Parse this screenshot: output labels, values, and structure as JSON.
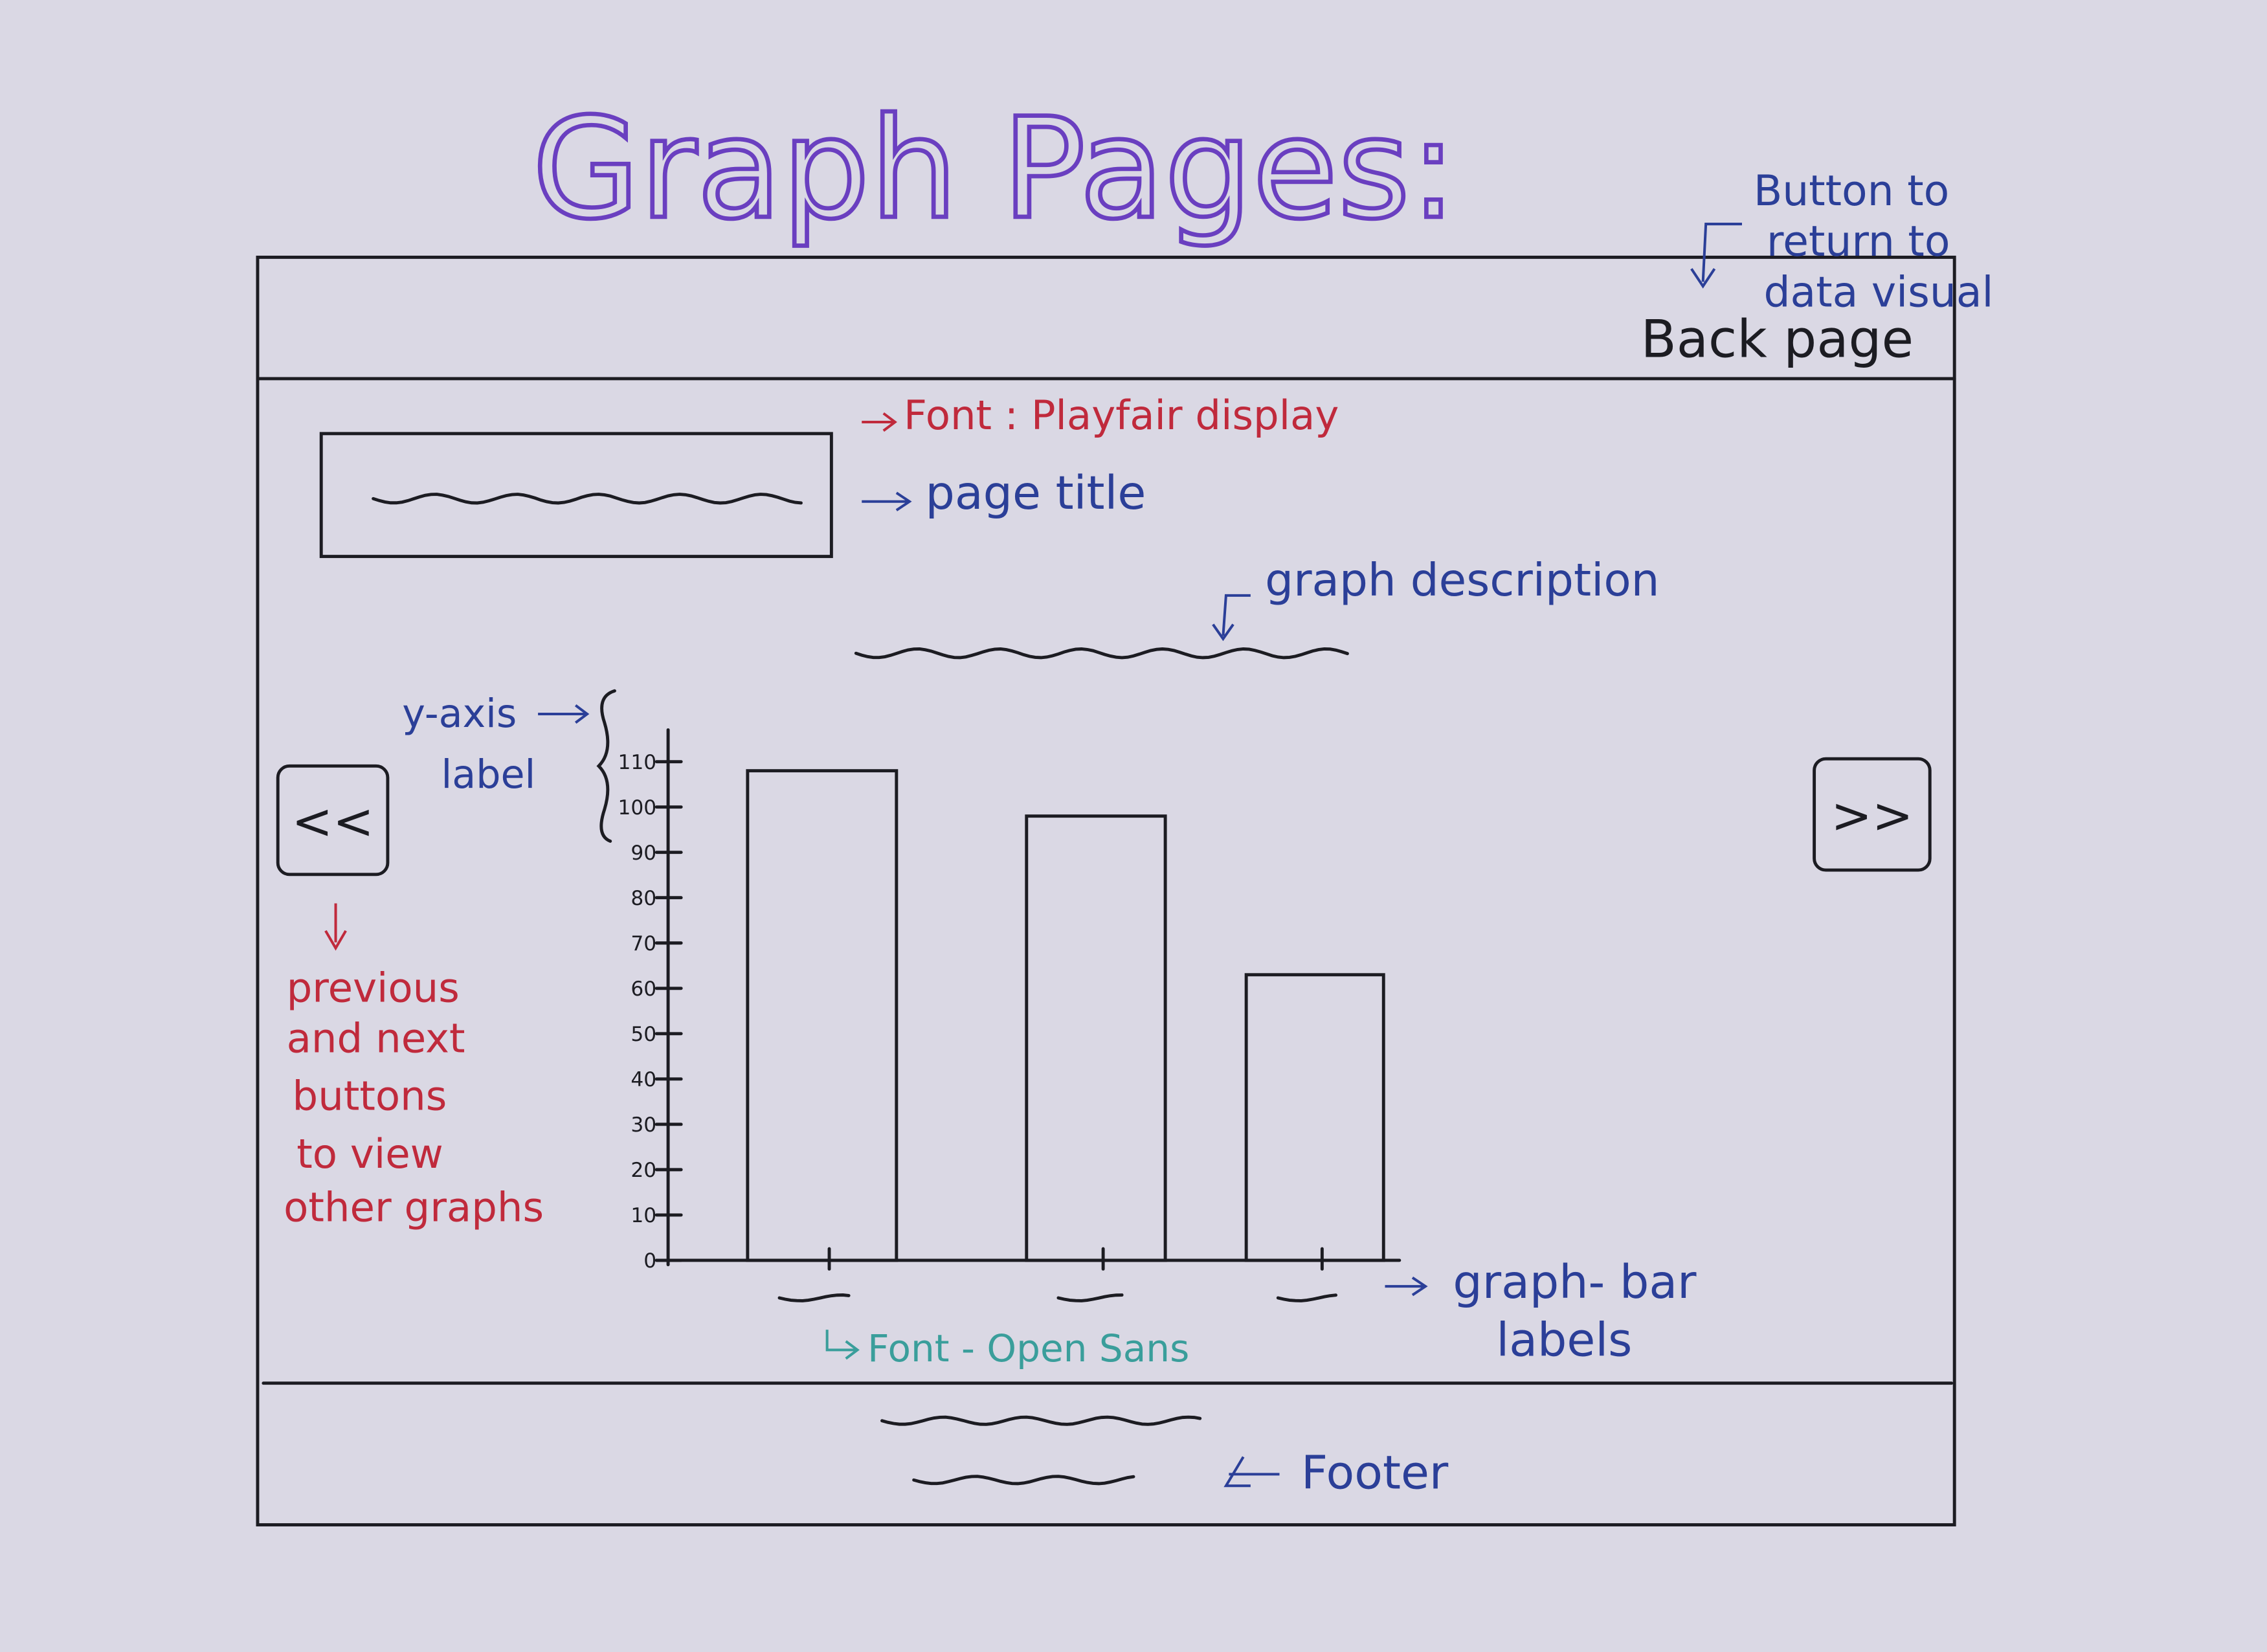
{
  "title": "Graph Pages:",
  "header": {
    "back_button": "Back page",
    "annotation": [
      "Button to",
      "return to",
      "data visual"
    ]
  },
  "page_title": {
    "font_note": "Font : Playfair display",
    "label": "page title"
  },
  "description": {
    "label": "graph description"
  },
  "y_axis_note": [
    "y-axis",
    "label"
  ],
  "nav": {
    "previous": "<<",
    "next": ">>",
    "note": [
      "previous",
      "and next",
      "buttons",
      "to view",
      "other graphs"
    ]
  },
  "chart": {
    "type": "bar",
    "values": [
      108,
      98,
      63
    ],
    "ylim": [
      0,
      110
    ],
    "yticks": [
      0,
      10,
      20,
      30,
      40,
      50,
      60,
      70,
      80,
      90,
      100,
      110
    ],
    "bar_labels_note": [
      "graph- bar",
      "labels"
    ],
    "font_note": "Font - Open Sans"
  },
  "footer": {
    "label": "Footer"
  }
}
